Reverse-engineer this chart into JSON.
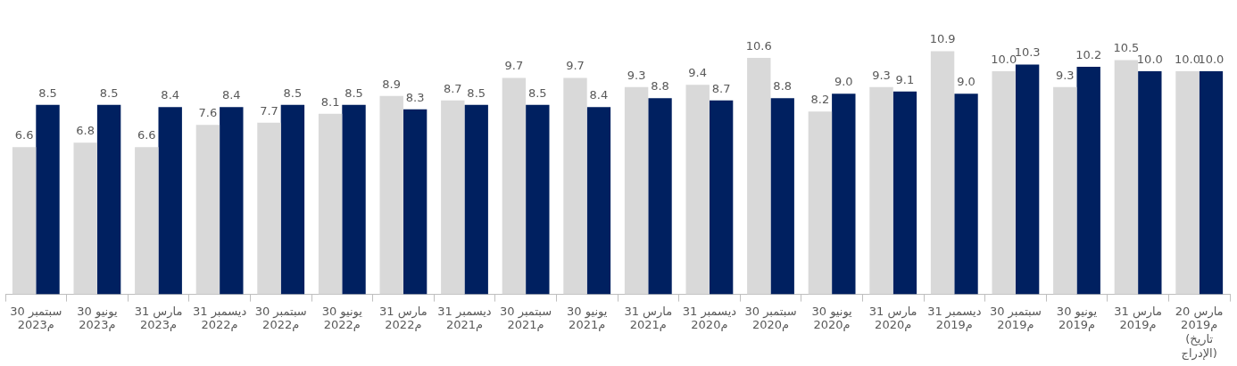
{
  "chart_data": {
    "type": "bar",
    "categories": [
      "30 سبتمبر\n2023م",
      "30 يونيو\n2023م",
      "31 مارس\n2023م",
      "31 ديسمبر\n2022م",
      "30 سبتمبر\n2022م",
      "30 يونيو\n2022م",
      "31 مارس\n2022م",
      "31 ديسمبر\n2021م",
      "30 سبتمبر\n2021م",
      "30 يونيو\n2021م",
      "31 مارس\n2021م",
      "31 ديسمبر\n2020م",
      "30 سبتمبر\n2020م",
      "30 يونيو\n2020م",
      "31 مارس\n2020م",
      "31 ديسمبر\n2019م",
      "30 سبتمبر\n2019م",
      "30 يونيو\n2019م",
      "31 مارس\n2019م",
      "20 مارس\n2019م\n(تاريخ\nالإدراج)"
    ],
    "series": [
      {
        "color": "#d9d9d9",
        "values": [
          6.6,
          6.8,
          6.6,
          7.6,
          7.7,
          8.1,
          8.9,
          8.7,
          9.7,
          9.7,
          9.3,
          9.4,
          10.6,
          8.2,
          9.3,
          10.9,
          10.0,
          9.3,
          10.5,
          10.0
        ],
        "value_labels": [
          "6.6",
          "6.8",
          "6.6",
          "7.6",
          "7.7",
          "8.1",
          "8.9",
          "8.7",
          "9.7",
          "9.7",
          "9.3",
          "9.4",
          "10.6",
          "8.2",
          "9.3",
          "10.9",
          "10.0",
          "9.3",
          "10.5",
          "10.0"
        ]
      },
      {
        "color": "#002060",
        "values": [
          8.5,
          8.5,
          8.4,
          8.4,
          8.5,
          8.5,
          8.3,
          8.5,
          8.5,
          8.4,
          8.8,
          8.7,
          8.8,
          9.0,
          9.1,
          9.0,
          10.3,
          10.2,
          10.0,
          10.0
        ],
        "value_labels": [
          "8.5",
          "8.5",
          "8.4",
          "8.4",
          "8.5",
          "8.5",
          "8.3",
          "8.5",
          "8.5",
          "8.4",
          "8.8",
          "8.7",
          "8.8",
          "9.0",
          "9.1",
          "9.0",
          "10.3",
          "10.2",
          "10.0",
          "10.0"
        ]
      }
    ],
    "grid": false,
    "legend": false
  }
}
